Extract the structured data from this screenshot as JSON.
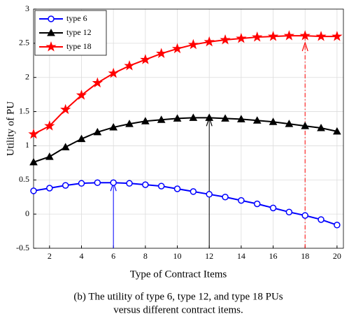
{
  "chart_data": {
    "type": "line",
    "x_label": "Type of Contract Items",
    "y_label": "Utility of PU",
    "caption": [
      "(b) The utility of type 6, type 12, and type 18 PUs",
      "versus different contract items."
    ],
    "x": [
      1,
      2,
      3,
      4,
      5,
      6,
      7,
      8,
      9,
      10,
      11,
      12,
      13,
      14,
      15,
      16,
      17,
      18,
      19,
      20
    ],
    "series": [
      {
        "name": "type 6",
        "color": "#0000ff",
        "marker": "circle",
        "values": [
          0.34,
          0.38,
          0.42,
          0.45,
          0.46,
          0.46,
          0.45,
          0.43,
          0.41,
          0.37,
          0.33,
          0.29,
          0.25,
          0.2,
          0.15,
          0.09,
          0.03,
          -0.02,
          -0.08,
          -0.16
        ]
      },
      {
        "name": "type 12",
        "color": "#000000",
        "marker": "triangle",
        "values": [
          0.76,
          0.84,
          0.98,
          1.1,
          1.2,
          1.27,
          1.32,
          1.36,
          1.38,
          1.4,
          1.41,
          1.41,
          1.4,
          1.39,
          1.37,
          1.35,
          1.32,
          1.29,
          1.26,
          1.21
        ]
      },
      {
        "name": "type 18",
        "color": "#ff0000",
        "marker": "star",
        "values": [
          1.17,
          1.29,
          1.53,
          1.74,
          1.92,
          2.06,
          2.17,
          2.26,
          2.35,
          2.42,
          2.48,
          2.52,
          2.55,
          2.57,
          2.59,
          2.6,
          2.61,
          2.61,
          2.6,
          2.6
        ]
      }
    ],
    "vlines": [
      {
        "x": 6,
        "y": 0.46,
        "color": "#0000ff",
        "dash": false
      },
      {
        "x": 12,
        "y": 1.41,
        "color": "#000000",
        "dash": false
      },
      {
        "x": 18,
        "y": 2.61,
        "color": "#ff0000",
        "dash": true
      }
    ],
    "xlim": [
      1,
      20.4
    ],
    "xticks": [
      2,
      4,
      6,
      8,
      10,
      12,
      14,
      16,
      18,
      20
    ],
    "ylim": [
      -0.5,
      3
    ],
    "yticks": [
      -0.5,
      0,
      0.5,
      1,
      1.5,
      2,
      2.5,
      3
    ],
    "grid": true,
    "legend": "upper-left"
  }
}
